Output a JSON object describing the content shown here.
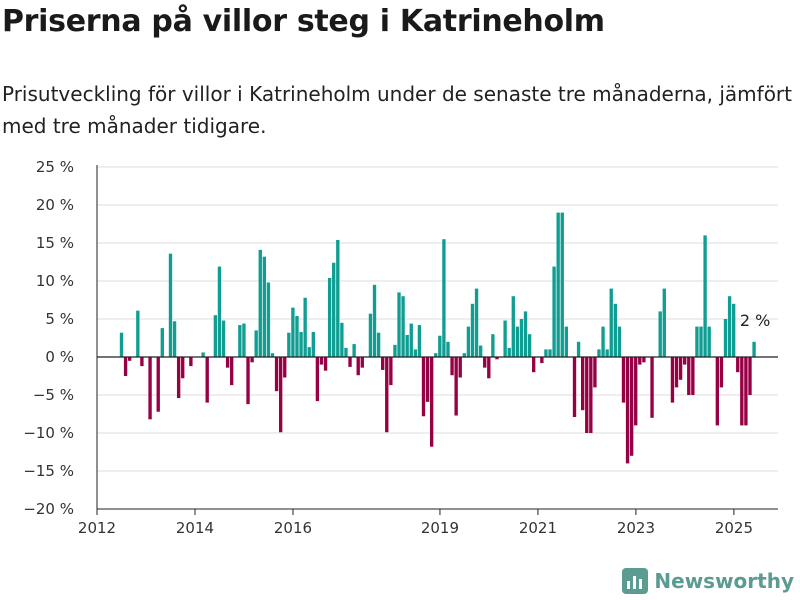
{
  "header": {
    "title": "Priserna på villor steg i Katrineholm",
    "subtitle": "Prisutveckling för villor i Katrineholm under de senaste tre månaderna, jämfört med tre månader tidigare."
  },
  "brand": {
    "name": "Newsworthy",
    "icon": "bar-chart-logo-icon",
    "color": "#5b9b92"
  },
  "colors": {
    "positive": "#109e92",
    "negative": "#960044",
    "grid": "#dddddd",
    "axis": "#222222"
  },
  "chart_data": {
    "type": "bar",
    "title": "Priserna på villor steg i Katrineholm",
    "xlabel": "",
    "ylabel": "",
    "ylim": [
      -20,
      25
    ],
    "y_ticks": [
      -20,
      -15,
      -10,
      -5,
      0,
      5,
      10,
      15,
      20,
      25
    ],
    "y_tick_labels": [
      "−20 %",
      "−15 %",
      "−10 %",
      "−5 %",
      "0 %",
      "5 %",
      "10 %",
      "15 %",
      "20 %",
      "25 %"
    ],
    "x_ticks": [
      2012,
      2014,
      2016,
      2019,
      2021,
      2023,
      2025
    ],
    "x_tick_labels": [
      "2012",
      "2014",
      "2016",
      "2019",
      "2021",
      "2023",
      "2025"
    ],
    "xlim": [
      2012.0,
      2025.9
    ],
    "grid": true,
    "last_label": "2 %",
    "x_start": 2012.5,
    "x_step": 0.0833,
    "values": [
      3.2,
      -2.5,
      -0.5,
      0,
      6.1,
      -1.2,
      0,
      -8.2,
      0,
      -7.2,
      3.8,
      0,
      13.6,
      4.7,
      -5.4,
      -2.8,
      0,
      -1.2,
      0,
      0,
      0.6,
      -6,
      0,
      5.5,
      11.9,
      4.8,
      -1.4,
      -3.7,
      0,
      4.2,
      4.4,
      -6.2,
      -0.7,
      3.5,
      14.1,
      13.2,
      9.8,
      0.5,
      -4.5,
      -9.9,
      -2.7,
      3.2,
      6.5,
      5.4,
      3.3,
      7.8,
      1.3,
      3.3,
      -5.8,
      -1,
      -1.8,
      10.4,
      12.4,
      15.4,
      4.5,
      1.2,
      -1.3,
      1.7,
      -2.4,
      -1.4,
      0,
      5.7,
      9.5,
      3.2,
      -1.7,
      -9.9,
      -3.7,
      1.6,
      8.5,
      8,
      2.9,
      4.4,
      1,
      4.2,
      -7.8,
      -5.9,
      -11.8,
      0.5,
      2.8,
      15.5,
      2,
      -2.4,
      -7.7,
      -2.7,
      0.5,
      4,
      7,
      9,
      1.5,
      -1.4,
      -2.8,
      3,
      -0.3,
      0,
      4.8,
      1.2,
      8,
      4,
      5,
      6,
      3,
      -2,
      0,
      -0.8,
      1,
      1,
      11.9,
      19,
      19,
      4,
      0,
      -7.9,
      2,
      -7,
      -10,
      -10,
      -4,
      1,
      4,
      1,
      9,
      7,
      4,
      -6,
      -14,
      -13,
      -9,
      -1,
      -0.7,
      0,
      -8,
      0,
      6,
      9,
      0,
      -6,
      -4,
      -3,
      -1,
      -5,
      -5,
      4,
      4,
      16,
      4,
      0,
      -9,
      -4,
      5,
      8,
      7,
      -2,
      -9,
      -9,
      -5,
      2
    ]
  }
}
